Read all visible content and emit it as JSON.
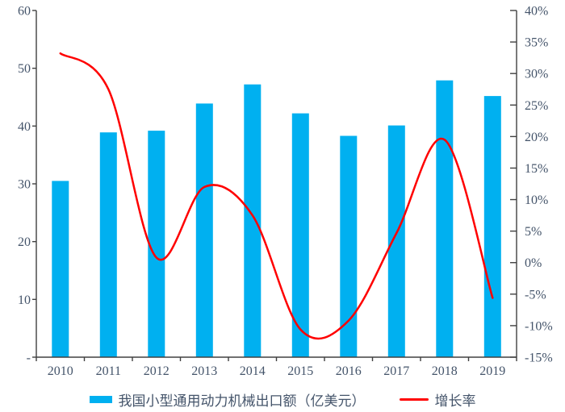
{
  "chart_data": {
    "type": "combo-bar-line",
    "title": "",
    "categories": [
      "2010",
      "2011",
      "2012",
      "2013",
      "2014",
      "2015",
      "2016",
      "2017",
      "2018",
      "2019"
    ],
    "series": [
      {
        "name": "我国小型通用动力机械出口额（亿美元）",
        "type": "bar",
        "axis": "left",
        "color": "#00B0F0",
        "values": [
          30.5,
          38.9,
          39.2,
          43.9,
          47.2,
          42.2,
          38.3,
          40.1,
          47.9,
          45.2
        ]
      },
      {
        "name": "增长率",
        "type": "line",
        "axis": "right",
        "color": "#FF0000",
        "values_percent": [
          33.2,
          27.5,
          0.8,
          12.0,
          7.5,
          -10.6,
          -9.2,
          4.7,
          19.5,
          -5.6
        ],
        "smoothed": true
      }
    ],
    "left_axis": {
      "min": 0,
      "max": 60,
      "step": 10,
      "tick_labels": [
        "60",
        "50",
        "40",
        "30",
        "20",
        "10",
        "-"
      ]
    },
    "right_axis": {
      "min": -15,
      "max": 40,
      "step": 5,
      "tick_labels": [
        "40%",
        "35%",
        "30%",
        "25%",
        "20%",
        "15%",
        "10%",
        "5%",
        "0%",
        "-5%",
        "-10%",
        "-15%"
      ]
    },
    "grid": false,
    "legend_position": "bottom",
    "background_color": "#FFFFFF",
    "text_color": "#44546A",
    "axis_color": "#404040"
  }
}
